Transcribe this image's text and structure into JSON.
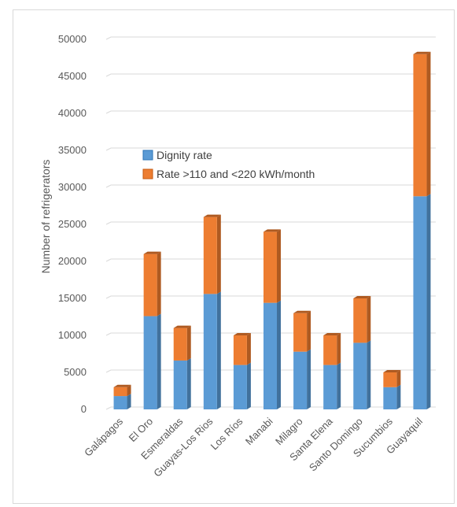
{
  "chart_data": {
    "type": "bar",
    "stacked": true,
    "style": "3d-column",
    "categories": [
      "Galápagos",
      "El Oro",
      "Esmeraldas",
      "Guayas-Los Rios",
      "Los Ríos",
      "Manabi",
      "Milagro",
      "Santa Elena",
      "Santo Domingo",
      "Sucumbios",
      "Guayaquil"
    ],
    "series": [
      {
        "name": "Dignity rate",
        "values": [
          1800,
          12600,
          6600,
          15600,
          6000,
          14400,
          7800,
          6000,
          9000,
          3000,
          28800
        ]
      },
      {
        "name": "Rate >110 and <220 kWh/month",
        "values": [
          1200,
          8400,
          4400,
          10400,
          4000,
          9600,
          5200,
          4000,
          6000,
          2000,
          19200
        ]
      }
    ],
    "title": "",
    "xlabel": "",
    "ylabel": "Number of refrigerators",
    "ylim": [
      0,
      50000
    ],
    "yticks": [
      0,
      5000,
      10000,
      15000,
      20000,
      25000,
      30000,
      35000,
      40000,
      45000,
      50000
    ],
    "grid": true,
    "legend_position": "upper-left inside plot"
  },
  "colors": {
    "series_front": [
      "#5b9bd5",
      "#ed7d31"
    ],
    "series_side": [
      "#41719c",
      "#ae5a21"
    ],
    "series_top": [
      "#9dc3e6",
      "#f4b183"
    ],
    "gridline": "#d9d9d9",
    "text": "#595959"
  }
}
